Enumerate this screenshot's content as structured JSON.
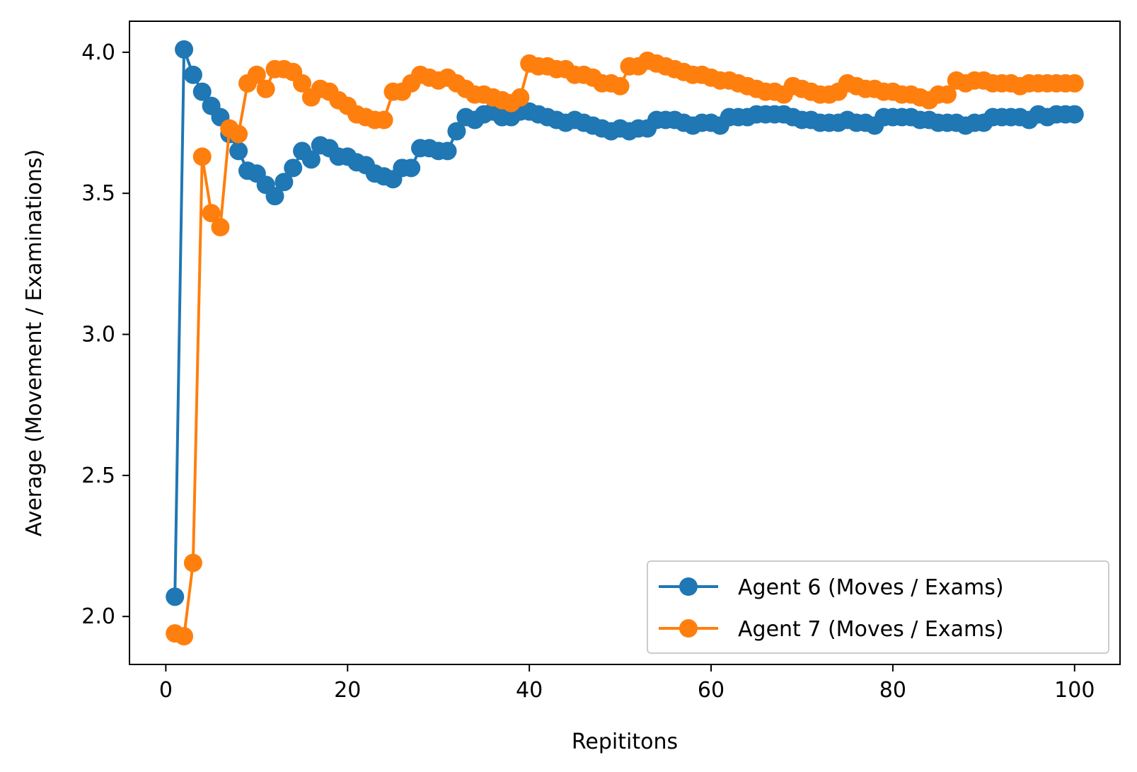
{
  "chart_data": {
    "type": "line",
    "title": "",
    "xlabel": "Repititons",
    "ylabel": "Average (Movement / Examinations)",
    "xlim": [
      -4,
      105
    ],
    "ylim": [
      1.83,
      4.11
    ],
    "xticks": [
      0,
      20,
      40,
      60,
      80,
      100
    ],
    "yticks": [
      2.0,
      2.5,
      3.0,
      3.5,
      4.0
    ],
    "grid": false,
    "legend_position": "lower-right",
    "series": [
      {
        "name": "Agent 6 (Moves / Exams)",
        "color": "#1f77b4",
        "marker": "circle",
        "x": [
          1,
          2,
          3,
          4,
          5,
          6,
          7,
          8,
          9,
          10,
          11,
          12,
          13,
          14,
          15,
          16,
          17,
          18,
          19,
          20,
          21,
          22,
          23,
          24,
          25,
          26,
          27,
          28,
          29,
          30,
          31,
          32,
          33,
          34,
          35,
          36,
          37,
          38,
          39,
          40,
          41,
          42,
          43,
          44,
          45,
          46,
          47,
          48,
          49,
          50,
          51,
          52,
          53,
          54,
          55,
          56,
          57,
          58,
          59,
          60,
          61,
          62,
          63,
          64,
          65,
          66,
          67,
          68,
          69,
          70,
          71,
          72,
          73,
          74,
          75,
          76,
          77,
          78,
          79,
          80,
          81,
          82,
          83,
          84,
          85,
          86,
          87,
          88,
          89,
          90,
          91,
          92,
          93,
          94,
          95,
          96,
          97,
          98,
          99,
          100
        ],
        "y": [
          2.07,
          4.01,
          3.92,
          3.86,
          3.81,
          3.77,
          3.71,
          3.65,
          3.58,
          3.57,
          3.53,
          3.49,
          3.54,
          3.59,
          3.65,
          3.62,
          3.67,
          3.66,
          3.63,
          3.63,
          3.61,
          3.6,
          3.57,
          3.56,
          3.55,
          3.59,
          3.59,
          3.66,
          3.66,
          3.65,
          3.65,
          3.72,
          3.77,
          3.76,
          3.78,
          3.79,
          3.77,
          3.77,
          3.79,
          3.79,
          3.78,
          3.77,
          3.76,
          3.75,
          3.76,
          3.75,
          3.74,
          3.73,
          3.72,
          3.73,
          3.72,
          3.73,
          3.73,
          3.76,
          3.76,
          3.76,
          3.75,
          3.74,
          3.75,
          3.75,
          3.74,
          3.77,
          3.77,
          3.77,
          3.78,
          3.78,
          3.78,
          3.78,
          3.77,
          3.76,
          3.76,
          3.75,
          3.75,
          3.75,
          3.76,
          3.75,
          3.75,
          3.74,
          3.77,
          3.77,
          3.77,
          3.77,
          3.76,
          3.76,
          3.75,
          3.75,
          3.75,
          3.74,
          3.75,
          3.75,
          3.77,
          3.77,
          3.77,
          3.77,
          3.76,
          3.78,
          3.77,
          3.78,
          3.78,
          3.78
        ]
      },
      {
        "name": "Agent 7 (Moves / Exams)",
        "color": "#ff7f0e",
        "marker": "circle",
        "x": [
          1,
          2,
          3,
          4,
          5,
          6,
          7,
          8,
          9,
          10,
          11,
          12,
          13,
          14,
          15,
          16,
          17,
          18,
          19,
          20,
          21,
          22,
          23,
          24,
          25,
          26,
          27,
          28,
          29,
          30,
          31,
          32,
          33,
          34,
          35,
          36,
          37,
          38,
          39,
          40,
          41,
          42,
          43,
          44,
          45,
          46,
          47,
          48,
          49,
          50,
          51,
          52,
          53,
          54,
          55,
          56,
          57,
          58,
          59,
          60,
          61,
          62,
          63,
          64,
          65,
          66,
          67,
          68,
          69,
          70,
          71,
          72,
          73,
          74,
          75,
          76,
          77,
          78,
          79,
          80,
          81,
          82,
          83,
          84,
          85,
          86,
          87,
          88,
          89,
          90,
          91,
          92,
          93,
          94,
          95,
          96,
          97,
          98,
          99,
          100
        ],
        "y": [
          1.94,
          1.93,
          2.19,
          3.63,
          3.43,
          3.38,
          3.73,
          3.71,
          3.89,
          3.92,
          3.87,
          3.94,
          3.94,
          3.93,
          3.89,
          3.84,
          3.87,
          3.86,
          3.83,
          3.81,
          3.78,
          3.77,
          3.76,
          3.76,
          3.86,
          3.86,
          3.89,
          3.92,
          3.91,
          3.9,
          3.91,
          3.89,
          3.87,
          3.85,
          3.85,
          3.84,
          3.83,
          3.82,
          3.84,
          3.96,
          3.95,
          3.95,
          3.94,
          3.94,
          3.92,
          3.92,
          3.91,
          3.89,
          3.89,
          3.88,
          3.95,
          3.95,
          3.97,
          3.96,
          3.95,
          3.94,
          3.93,
          3.92,
          3.92,
          3.91,
          3.9,
          3.9,
          3.89,
          3.88,
          3.87,
          3.86,
          3.86,
          3.85,
          3.88,
          3.87,
          3.86,
          3.85,
          3.85,
          3.86,
          3.89,
          3.88,
          3.87,
          3.87,
          3.86,
          3.86,
          3.85,
          3.85,
          3.84,
          3.83,
          3.85,
          3.85,
          3.9,
          3.89,
          3.9,
          3.9,
          3.89,
          3.89,
          3.89,
          3.88,
          3.89,
          3.89,
          3.89,
          3.89,
          3.89,
          3.89
        ]
      }
    ]
  }
}
